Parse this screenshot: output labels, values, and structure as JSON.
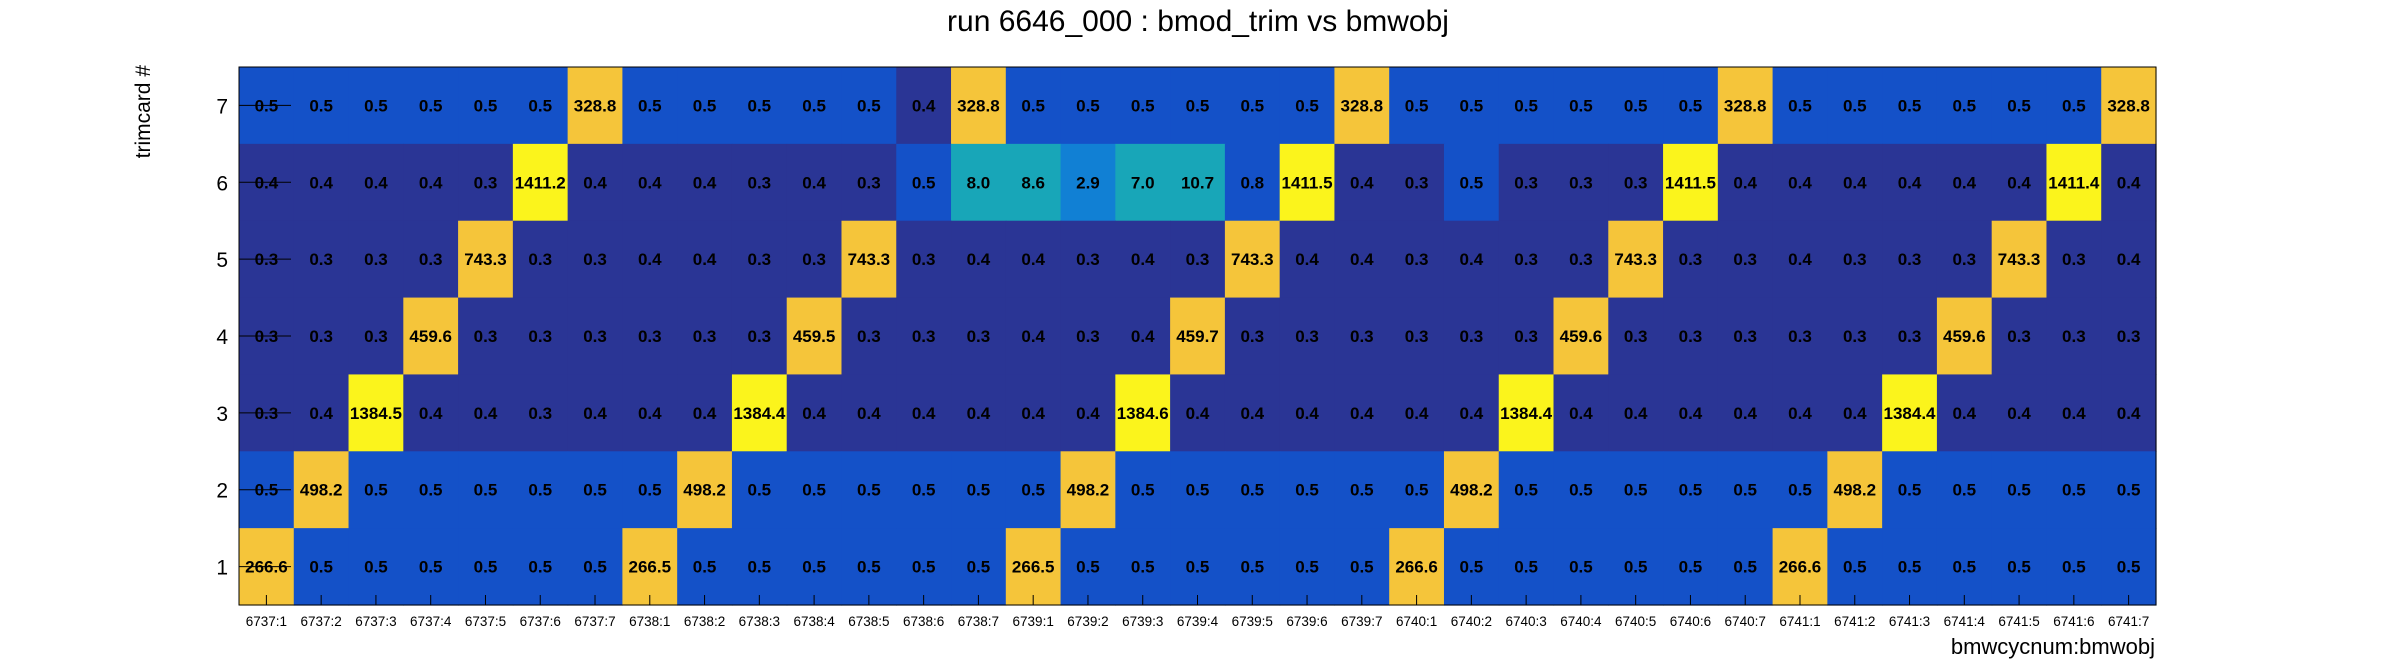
{
  "chart_data": {
    "type": "heatmap",
    "title": "run 6646_000 : bmod_trim vs bmwobj",
    "xlabel": "bmwcycnum:bmwobj",
    "ylabel": "trimcard #",
    "x_categories": [
      "6737:1",
      "6737:2",
      "6737:3",
      "6737:4",
      "6737:5",
      "6737:6",
      "6737:7",
      "6738:1",
      "6738:2",
      "6738:3",
      "6738:4",
      "6738:5",
      "6738:6",
      "6738:7",
      "6739:1",
      "6739:2",
      "6739:3",
      "6739:4",
      "6739:5",
      "6739:6",
      "6739:7",
      "6740:1",
      "6740:2",
      "6740:3",
      "6740:4",
      "6740:5",
      "6740:6",
      "6740:7",
      "6741:1",
      "6741:2",
      "6741:3",
      "6741:4",
      "6741:5",
      "6741:6",
      "6741:7"
    ],
    "y_categories": [
      "1",
      "2",
      "3",
      "4",
      "5",
      "6",
      "7"
    ],
    "rows": [
      {
        "y": "7",
        "values": [
          "0.5",
          "0.5",
          "0.5",
          "0.5",
          "0.5",
          "0.5",
          "328.8",
          "0.5",
          "0.5",
          "0.5",
          "0.5",
          "0.5",
          "0.4",
          "328.8",
          "0.5",
          "0.5",
          "0.5",
          "0.5",
          "0.5",
          "0.5",
          "328.8",
          "0.5",
          "0.5",
          "0.5",
          "0.5",
          "0.5",
          "0.5",
          "328.8",
          "0.5",
          "0.5",
          "0.5",
          "0.5",
          "0.5",
          "0.5",
          "328.8"
        ]
      },
      {
        "y": "6",
        "values": [
          "0.4",
          "0.4",
          "0.4",
          "0.4",
          "0.3",
          "1411.2",
          "0.4",
          "0.4",
          "0.4",
          "0.3",
          "0.4",
          "0.3",
          "0.5",
          "8.0",
          "8.6",
          "2.9",
          "7.0",
          "10.7",
          "0.8",
          "1411.5",
          "0.4",
          "0.3",
          "0.5",
          "0.3",
          "0.3",
          "0.3",
          "1411.5",
          "0.4",
          "0.4",
          "0.4",
          "0.4",
          "0.4",
          "0.4",
          "1411.4",
          "0.4"
        ]
      },
      {
        "y": "5",
        "values": [
          "0.3",
          "0.3",
          "0.3",
          "0.3",
          "743.3",
          "0.3",
          "0.3",
          "0.4",
          "0.4",
          "0.3",
          "0.3",
          "743.3",
          "0.3",
          "0.4",
          "0.4",
          "0.3",
          "0.4",
          "0.3",
          "743.3",
          "0.4",
          "0.4",
          "0.3",
          "0.4",
          "0.3",
          "0.3",
          "743.3",
          "0.3",
          "0.3",
          "0.4",
          "0.3",
          "0.3",
          "0.3",
          "743.3",
          "0.3",
          "0.4"
        ]
      },
      {
        "y": "4",
        "values": [
          "0.3",
          "0.3",
          "0.3",
          "459.6",
          "0.3",
          "0.3",
          "0.3",
          "0.3",
          "0.3",
          "0.3",
          "459.5",
          "0.3",
          "0.3",
          "0.3",
          "0.4",
          "0.3",
          "0.4",
          "459.7",
          "0.3",
          "0.3",
          "0.3",
          "0.3",
          "0.3",
          "0.3",
          "459.6",
          "0.3",
          "0.3",
          "0.3",
          "0.3",
          "0.3",
          "0.3",
          "459.6",
          "0.3",
          "0.3",
          "0.3"
        ]
      },
      {
        "y": "3",
        "values": [
          "0.3",
          "0.4",
          "1384.5",
          "0.4",
          "0.4",
          "0.3",
          "0.4",
          "0.4",
          "0.4",
          "1384.4",
          "0.4",
          "0.4",
          "0.4",
          "0.4",
          "0.4",
          "0.4",
          "1384.6",
          "0.4",
          "0.4",
          "0.4",
          "0.4",
          "0.4",
          "0.4",
          "1384.4",
          "0.4",
          "0.4",
          "0.4",
          "0.4",
          "0.4",
          "0.4",
          "1384.4",
          "0.4",
          "0.4",
          "0.4",
          "0.4"
        ]
      },
      {
        "y": "2",
        "values": [
          "0.5",
          "498.2",
          "0.5",
          "0.5",
          "0.5",
          "0.5",
          "0.5",
          "0.5",
          "498.2",
          "0.5",
          "0.5",
          "0.5",
          "0.5",
          "0.5",
          "0.5",
          "498.2",
          "0.5",
          "0.5",
          "0.5",
          "0.5",
          "0.5",
          "0.5",
          "498.2",
          "0.5",
          "0.5",
          "0.5",
          "0.5",
          "0.5",
          "0.5",
          "498.2",
          "0.5",
          "0.5",
          "0.5",
          "0.5",
          "0.5"
        ]
      },
      {
        "y": "1",
        "values": [
          "266.6",
          "0.5",
          "0.5",
          "0.5",
          "0.5",
          "0.5",
          "0.5",
          "266.5",
          "0.5",
          "0.5",
          "0.5",
          "0.5",
          "0.5",
          "0.5",
          "266.5",
          "0.5",
          "0.5",
          "0.5",
          "0.5",
          "0.5",
          "0.5",
          "266.6",
          "0.5",
          "0.5",
          "0.5",
          "0.5",
          "0.5",
          "0.5",
          "266.6",
          "0.5",
          "0.5",
          "0.5",
          "0.5",
          "0.5",
          "0.5"
        ]
      }
    ],
    "color_scale": "rainbow-low-blue-high-yellow"
  },
  "colors": {
    "low_dark": "#2a3595",
    "low_mid": "#1451c8",
    "mid_blue": "#1180d4",
    "mid_teal": "#18a6b8",
    "high_orange": "#f5c53a",
    "high_yellow": "#fbf41c"
  }
}
